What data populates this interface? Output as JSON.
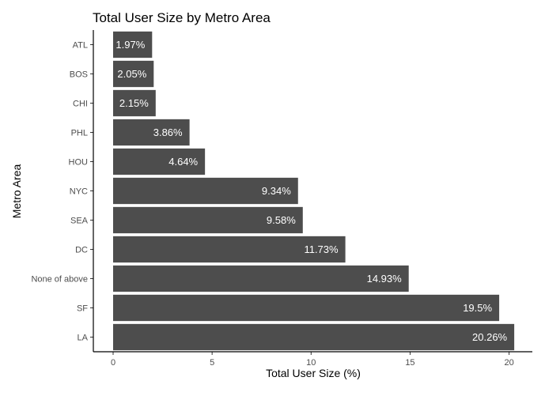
{
  "chart_data": {
    "type": "bar",
    "orientation": "horizontal",
    "title": "Total User Size by Metro Area",
    "xlabel": "Total User Size (%)",
    "ylabel": "Metro Area",
    "xlim": [
      0,
      21.1
    ],
    "xticks": [
      0,
      5,
      10,
      15,
      20
    ],
    "grid": false,
    "bar_color": "#4d4d4d",
    "label_color": "#ffffff",
    "categories": [
      "ATL",
      "BOS",
      "CHI",
      "PHL",
      "HOU",
      "NYC",
      "SEA",
      "DC",
      "None of above",
      "SF",
      "LA"
    ],
    "values": [
      1.97,
      2.05,
      2.15,
      3.86,
      4.64,
      9.34,
      9.58,
      11.73,
      14.93,
      19.5,
      20.26
    ],
    "value_labels": [
      "1.97%",
      "2.05%",
      "2.15%",
      "3.86%",
      "4.64%",
      "9.34%",
      "9.58%",
      "11.73%",
      "14.93%",
      "19.5%",
      "20.26%"
    ]
  }
}
